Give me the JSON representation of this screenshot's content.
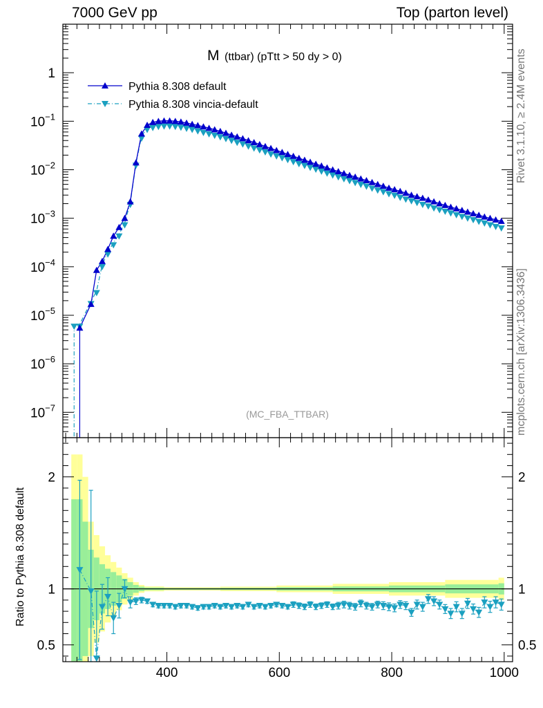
{
  "header": {
    "left": "7000 GeV pp",
    "right": "Top (parton level)"
  },
  "side": {
    "rivet": "Rivet 3.1.10, ≥ 2.4M events",
    "mcplots": "mcplots.cern.ch [arXiv:1306.3436]"
  },
  "chart_data": {
    "type": "line",
    "title_main": "M",
    "title_sub": "(ttbar) (pTtt > 50 dy > 0)",
    "watermark": "(MC_FBA_TTBAR)",
    "ylabel_ratio": "Ratio to Pythia 8.308 default",
    "x_ticks": [
      "400",
      "600",
      "800",
      "1000"
    ],
    "x_tick_values": [
      400,
      600,
      800,
      1000
    ],
    "xlim": [
      215,
      1015
    ],
    "ylim_main": [
      3e-08,
      10
    ],
    "ylog": true,
    "y_ticks_main": [
      {
        "v": 1,
        "base": "1",
        "exp": ""
      },
      {
        "v": 0.1,
        "base": "10",
        "exp": "−1"
      },
      {
        "v": 0.01,
        "base": "10",
        "exp": "−2"
      },
      {
        "v": 0.001,
        "base": "10",
        "exp": "−3"
      },
      {
        "v": 0.0001,
        "base": "10",
        "exp": "−4"
      },
      {
        "v": 1e-05,
        "base": "10",
        "exp": "−5"
      },
      {
        "v": 1e-06,
        "base": "10",
        "exp": "−6"
      },
      {
        "v": 1e-07,
        "base": "10",
        "exp": "−7"
      }
    ],
    "ylim_ratio": [
      0.35,
      2.35
    ],
    "y_ticks_ratio": [
      {
        "v": 2,
        "label": "2"
      },
      {
        "v": 1,
        "label": "1"
      },
      {
        "v": 0.5,
        "label": "0.5"
      }
    ],
    "legend_position": "top-left",
    "colors": {
      "default": "#0000cc",
      "vincia": "#1ba0c0",
      "band_inner": "#99ee99",
      "band_outer": "#ffff99"
    },
    "series": [
      {
        "name": "Pythia 8.308 default",
        "x": [
          245,
          265,
          275,
          285,
          295,
          305,
          315,
          325,
          335,
          345,
          355,
          365,
          375,
          385,
          395,
          405,
          415,
          425,
          435,
          445,
          455,
          465,
          475,
          485,
          495,
          505,
          515,
          525,
          535,
          545,
          555,
          565,
          575,
          585,
          595,
          605,
          615,
          625,
          635,
          645,
          655,
          665,
          675,
          685,
          695,
          705,
          715,
          725,
          735,
          745,
          755,
          765,
          775,
          785,
          795,
          805,
          815,
          825,
          835,
          845,
          855,
          865,
          875,
          885,
          895,
          905,
          915,
          925,
          935,
          945,
          955,
          965,
          975,
          985,
          995
        ],
        "y": [
          5.5e-06,
          1.7e-05,
          8.5e-05,
          0.00013,
          0.00023,
          0.00043,
          0.00065,
          0.001,
          0.0022,
          0.014,
          0.055,
          0.083,
          0.095,
          0.1,
          0.102,
          0.102,
          0.1,
          0.097,
          0.092,
          0.087,
          0.082,
          0.077,
          0.072,
          0.067,
          0.062,
          0.057,
          0.052,
          0.048,
          0.044,
          0.04,
          0.0365,
          0.0333,
          0.0303,
          0.0276,
          0.0251,
          0.0229,
          0.0208,
          0.019,
          0.0173,
          0.0158,
          0.0144,
          0.0131,
          0.012,
          0.011,
          0.01,
          0.0092,
          0.0084,
          0.0077,
          0.0071,
          0.0065,
          0.006,
          0.0055,
          0.005,
          0.0046,
          0.0042,
          0.0039,
          0.0036,
          0.0033,
          0.003,
          0.0028,
          0.0026,
          0.0024,
          0.0022,
          0.002,
          0.00185,
          0.0017,
          0.00158,
          0.00146,
          0.00135,
          0.00125,
          0.00116,
          0.00107,
          0.001,
          0.00093,
          0.00087
        ]
      },
      {
        "name": "Pythia 8.308 vincia-default",
        "x": [
          235,
          245,
          265,
          275,
          285,
          295,
          305,
          315,
          325,
          335,
          345,
          355,
          365,
          375,
          385,
          395,
          405,
          415,
          425,
          435,
          445,
          455,
          465,
          475,
          485,
          495,
          505,
          515,
          525,
          535,
          545,
          555,
          565,
          575,
          585,
          595,
          605,
          615,
          625,
          635,
          645,
          655,
          665,
          675,
          685,
          695,
          705,
          715,
          725,
          735,
          745,
          755,
          765,
          775,
          785,
          795,
          805,
          815,
          825,
          835,
          845,
          855,
          865,
          875,
          885,
          895,
          905,
          915,
          925,
          935,
          945,
          955,
          965,
          975,
          985,
          995
        ],
        "y": [
          6.5e-06,
          6.5e-06,
          1.9e-05,
          3.2e-05,
          0.00011,
          0.0002,
          0.00031,
          0.00047,
          0.0008,
          0.0021,
          0.0135,
          0.049,
          0.074,
          0.081,
          0.085,
          0.087,
          0.087,
          0.085,
          0.082,
          0.078,
          0.074,
          0.069,
          0.064,
          0.06,
          0.056,
          0.052,
          0.048,
          0.044,
          0.04,
          0.037,
          0.0335,
          0.0305,
          0.028,
          0.0255,
          0.023,
          0.021,
          0.0193,
          0.0177,
          0.016,
          0.0146,
          0.0134,
          0.0122,
          0.0112,
          0.0102,
          0.0093,
          0.0085,
          0.0078,
          0.0071,
          0.0065,
          0.00595,
          0.00545,
          0.005,
          0.00455,
          0.00415,
          0.00385,
          0.0035,
          0.00325,
          0.00295,
          0.0027,
          0.0025,
          0.0023,
          0.0021,
          0.00195,
          0.00178,
          0.00164,
          0.00152,
          0.0014,
          0.00129,
          0.00119,
          0.0011,
          0.00102,
          0.00094,
          0.00087,
          0.0008,
          0.00074,
          0.00069
        ],
        "ratio_x": [
          245,
          265,
          275,
          285,
          295,
          305,
          315,
          325,
          335,
          345,
          355,
          365,
          375,
          385,
          395,
          405,
          415,
          425,
          435,
          445,
          455,
          465,
          475,
          485,
          495,
          505,
          515,
          525,
          535,
          545,
          555,
          565,
          575,
          585,
          595,
          605,
          615,
          625,
          635,
          645,
          655,
          665,
          675,
          685,
          695,
          705,
          715,
          725,
          735,
          745,
          755,
          765,
          775,
          785,
          795,
          805,
          815,
          825,
          835,
          845,
          855,
          865,
          875,
          885,
          895,
          905,
          915,
          925,
          935,
          945,
          955,
          965,
          975,
          985,
          995
        ],
        "ratio_y": [
          1.17,
          0.98,
          0.38,
          0.84,
          0.93,
          0.74,
          0.85,
          1.0,
          0.88,
          0.89,
          0.9,
          0.89,
          0.86,
          0.85,
          0.85,
          0.85,
          0.84,
          0.85,
          0.85,
          0.84,
          0.83,
          0.84,
          0.84,
          0.85,
          0.84,
          0.85,
          0.84,
          0.85,
          0.84,
          0.86,
          0.84,
          0.85,
          0.84,
          0.85,
          0.86,
          0.85,
          0.84,
          0.86,
          0.85,
          0.84,
          0.86,
          0.84,
          0.85,
          0.86,
          0.84,
          0.85,
          0.86,
          0.85,
          0.84,
          0.87,
          0.85,
          0.84,
          0.86,
          0.85,
          0.84,
          0.83,
          0.86,
          0.85,
          0.79,
          0.86,
          0.84,
          0.91,
          0.89,
          0.86,
          0.82,
          0.78,
          0.84,
          0.78,
          0.87,
          0.82,
          0.79,
          0.88,
          0.84,
          0.88,
          0.86
        ],
        "ratio_err": [
          0.8,
          0.9,
          0.6,
          0.2,
          0.17,
          0.14,
          0.11,
          0.08,
          0.05,
          0.03,
          0.025,
          0.02,
          0.02,
          0.02,
          0.02,
          0.02,
          0.02,
          0.02,
          0.02,
          0.02,
          0.02,
          0.02,
          0.02,
          0.02,
          0.02,
          0.02,
          0.02,
          0.02,
          0.02,
          0.02,
          0.02,
          0.02,
          0.02,
          0.02,
          0.02,
          0.02,
          0.02,
          0.025,
          0.025,
          0.025,
          0.025,
          0.025,
          0.025,
          0.025,
          0.025,
          0.03,
          0.03,
          0.03,
          0.03,
          0.03,
          0.03,
          0.03,
          0.03,
          0.035,
          0.035,
          0.035,
          0.035,
          0.035,
          0.035,
          0.04,
          0.04,
          0.04,
          0.04,
          0.04,
          0.04,
          0.045,
          0.045,
          0.045,
          0.045,
          0.045,
          0.045,
          0.05,
          0.05,
          0.05,
          0.05
        ]
      }
    ],
    "band": {
      "x": [
        235,
        245,
        255,
        265,
        275,
        285,
        295,
        305,
        315,
        325,
        335,
        345,
        355,
        365,
        400,
        500,
        600,
        700,
        800,
        900,
        995
      ],
      "inner": [
        0.8,
        0.8,
        0.6,
        0.35,
        0.28,
        0.22,
        0.18,
        0.15,
        0.12,
        0.09,
        0.06,
        0.035,
        0.02,
        0.012,
        0.008,
        0.01,
        0.015,
        0.022,
        0.03,
        0.04,
        0.05
      ],
      "outer": [
        1.2,
        1.2,
        1.0,
        0.6,
        0.48,
        0.38,
        0.3,
        0.24,
        0.19,
        0.14,
        0.1,
        0.06,
        0.035,
        0.022,
        0.015,
        0.02,
        0.03,
        0.045,
        0.06,
        0.08,
        0.1
      ]
    }
  }
}
